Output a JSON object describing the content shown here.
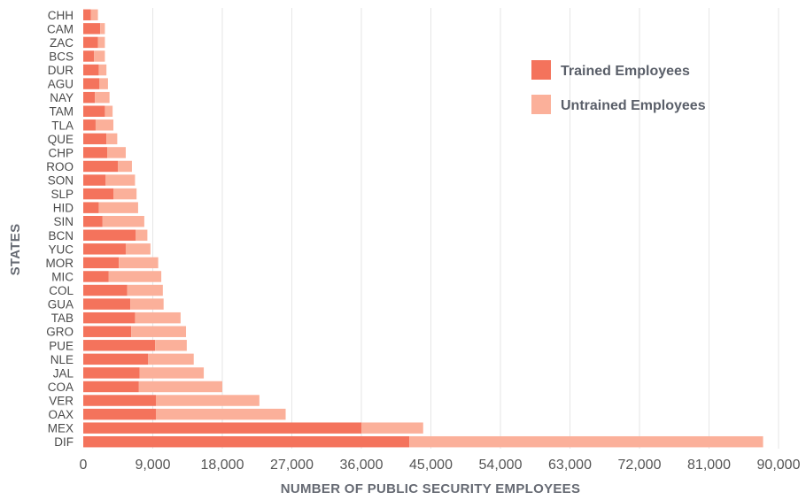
{
  "chart_data": {
    "type": "bar",
    "orientation": "horizontal",
    "stacked": true,
    "title": "",
    "xlabel": "NUMBER OF PUBLIC SECURITY EMPLOYEES",
    "ylabel": "STATES",
    "xlim": [
      0,
      90000
    ],
    "x_ticks": [
      "0",
      "9,000",
      "18,000",
      "27,000",
      "36,000",
      "45,000",
      "54,000",
      "63,000",
      "72,000",
      "81,000",
      "90,000"
    ],
    "grid": "vertical",
    "legend_position": "top-right",
    "categories": [
      "CHH",
      "CAM",
      "ZAC",
      "BCS",
      "DUR",
      "AGU",
      "NAY",
      "TAM",
      "TLA",
      "QUE",
      "CHP",
      "ROO",
      "SON",
      "SLP",
      "HID",
      "SIN",
      "BCN",
      "YUC",
      "MOR",
      "MIC",
      "COL",
      "GUA",
      "TAB",
      "GRO",
      "PUE",
      "NLE",
      "JAL",
      "COA",
      "VER",
      "OAX",
      "MEX",
      "DIF"
    ],
    "series": [
      {
        "name": "Trained Employees",
        "color": "#f4735c",
        "values": [
          1000,
          2200,
          1900,
          1400,
          2000,
          2100,
          1500,
          2800,
          1600,
          3000,
          3100,
          4500,
          2900,
          3900,
          2000,
          2500,
          6800,
          5500,
          4600,
          3300,
          5700,
          6100,
          6700,
          6200,
          9300,
          8400,
          7300,
          7200,
          9400,
          9400,
          36000,
          42200
        ]
      },
      {
        "name": "Untrained Employees",
        "color": "#fbb09a",
        "values": [
          900,
          600,
          900,
          1400,
          1000,
          1100,
          1900,
          1000,
          2300,
          1400,
          2400,
          1800,
          3800,
          3000,
          5100,
          5400,
          1500,
          3200,
          5100,
          6800,
          4600,
          4300,
          5900,
          7100,
          4100,
          5900,
          8300,
          10800,
          13400,
          16800,
          8000,
          45800
        ]
      }
    ]
  }
}
